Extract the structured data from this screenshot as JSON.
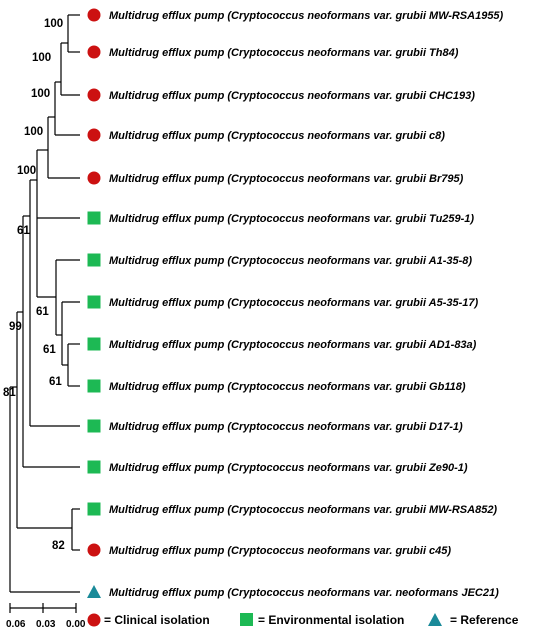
{
  "colors": {
    "clinical": "#cc1111",
    "environmental": "#1db954",
    "reference": "#1a8a99",
    "line": "#000000"
  },
  "leaves": [
    {
      "label": "Multidrug efflux pump (Cryptococcus neoformans var. grubii MW-RSA1955)",
      "marker": "circle"
    },
    {
      "label": "Multidrug efflux pump (Cryptococcus neoformans var. grubii Th84)",
      "marker": "circle"
    },
    {
      "label": "Multidrug efflux pump (Cryptococcus neoformans var. grubii CHC193)",
      "marker": "circle"
    },
    {
      "label": "Multidrug efflux pump (Cryptococcus neoformans var. grubii c8)",
      "marker": "circle"
    },
    {
      "label": "Multidrug efflux pump (Cryptococcus neoformans var. grubii Br795)",
      "marker": "circle"
    },
    {
      "label": "Multidrug efflux pump (Cryptococcus neoformans var. grubii Tu259-1)",
      "marker": "square"
    },
    {
      "label": "Multidrug efflux pump (Cryptococcus neoformans var. grubii A1-35-8)",
      "marker": "square"
    },
    {
      "label": "Multidrug efflux pump (Cryptococcus neoformans var. grubii A5-35-17)",
      "marker": "square"
    },
    {
      "label": "Multidrug efflux pump (Cryptococcus neoformans var. grubii AD1-83a)",
      "marker": "square"
    },
    {
      "label": "Multidrug efflux pump (Cryptococcus neoformans var. grubii Gb118)",
      "marker": "square"
    },
    {
      "label": "Multidrug efflux pump (Cryptococcus neoformans var. grubii D17-1)",
      "marker": "square"
    },
    {
      "label": "Multidrug efflux pump (Cryptococcus neoformans var. grubii Ze90-1)",
      "marker": "square"
    },
    {
      "label": "Multidrug efflux pump (Cryptococcus neoformans var. grubii MW-RSA852)",
      "marker": "square"
    },
    {
      "label": "Multidrug efflux pump (Cryptococcus neoformans var. grubii c45)",
      "marker": "circle"
    },
    {
      "label": "Multidrug efflux pump (Cryptococcus neoformans var. neoformans JEC21)",
      "marker": "triangle"
    }
  ],
  "bootstrap": [
    "100",
    "100",
    "100",
    "100",
    "100",
    "61",
    "61",
    "61",
    "61",
    "99",
    "81",
    "82"
  ],
  "scale": {
    "labels": [
      "0.06",
      "0.03",
      "0.00"
    ]
  },
  "legend": {
    "clinical": "= Clinical isolation",
    "environmental": "= Environmental isolation",
    "reference": "= Reference"
  }
}
